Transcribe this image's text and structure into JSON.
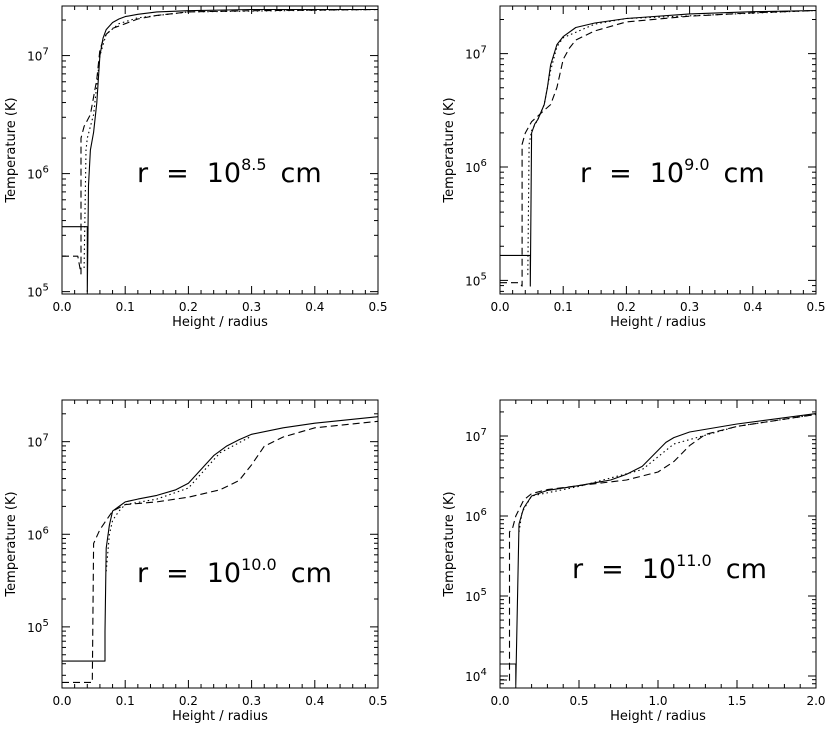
{
  "chart_data": [
    {
      "type": "line",
      "xlabel": "Height / radius",
      "ylabel": "Temperature (K)",
      "xlim": [
        0,
        0.5
      ],
      "ylim_log10": [
        4.98,
        7.42
      ],
      "x_ticks": [
        "0.0",
        "0.1",
        "0.2",
        "0.3",
        "0.4",
        "0.5"
      ],
      "x_tick_values": [
        0,
        0.1,
        0.2,
        0.3,
        0.4,
        0.5
      ],
      "y_ticks": [
        {
          "base": "10",
          "exp": "5",
          "log10": 5
        },
        {
          "base": "10",
          "exp": "6",
          "log10": 6
        },
        {
          "base": "10",
          "exp": "7",
          "log10": 7
        }
      ],
      "annotation": {
        "prefix": "r = 10",
        "exp": "8.5",
        "suffix": "cm"
      },
      "series": [
        {
          "name": "solid",
          "style": "solid",
          "x": [
            0,
            0.04,
            0.04,
            0.042,
            0.045,
            0.05,
            0.055,
            0.06,
            0.065,
            0.07,
            0.08,
            0.09,
            0.1,
            0.12,
            0.15,
            0.2,
            0.3,
            0.5
          ],
          "log10T": [
            5.55,
            5.55,
            5.0,
            5.9,
            6.2,
            6.35,
            6.6,
            7.0,
            7.15,
            7.22,
            7.28,
            7.31,
            7.33,
            7.35,
            7.37,
            7.38,
            7.39,
            7.39
          ]
        },
        {
          "name": "dashed",
          "style": "dashed",
          "x": [
            0,
            0.025,
            0.03,
            0.03,
            0.035,
            0.045,
            0.055,
            0.06,
            0.065,
            0.07,
            0.08,
            0.1,
            0.12,
            0.15,
            0.2,
            0.3,
            0.5
          ],
          "log10T": [
            5.3,
            5.3,
            5.15,
            6.3,
            6.4,
            6.5,
            6.8,
            7.05,
            7.13,
            7.18,
            7.23,
            7.27,
            7.31,
            7.34,
            7.37,
            7.38,
            7.39
          ]
        },
        {
          "name": "dotted",
          "style": "dotted",
          "x": [
            0.035,
            0.038,
            0.04,
            0.045,
            0.05,
            0.06,
            0.07,
            0.09,
            0.12,
            0.2,
            0.5
          ],
          "log10T": [
            5.2,
            6.2,
            6.3,
            6.4,
            6.5,
            7.0,
            7.18,
            7.27,
            7.32,
            7.37,
            7.39
          ]
        }
      ]
    },
    {
      "type": "line",
      "xlabel": "Height / radius",
      "ylabel": "Temperature (K)",
      "xlim": [
        0,
        0.5
      ],
      "ylim_log10": [
        4.88,
        7.42
      ],
      "x_ticks": [
        "0.0",
        "0.1",
        "0.2",
        "0.3",
        "0.4",
        "0.5"
      ],
      "x_tick_values": [
        0,
        0.1,
        0.2,
        0.3,
        0.4,
        0.5
      ],
      "y_ticks": [
        {
          "base": "10",
          "exp": "5",
          "log10": 5
        },
        {
          "base": "10",
          "exp": "6",
          "log10": 6
        },
        {
          "base": "10",
          "exp": "7",
          "log10": 7
        }
      ],
      "annotation": {
        "prefix": "r = 10",
        "exp": "9.0",
        "suffix": "cm"
      },
      "series": [
        {
          "name": "solid",
          "style": "solid",
          "x": [
            0,
            0.048,
            0.048,
            0.05,
            0.055,
            0.06,
            0.07,
            0.075,
            0.08,
            0.09,
            0.1,
            0.12,
            0.15,
            0.2,
            0.3,
            0.4,
            0.5
          ],
          "log10T": [
            5.22,
            5.22,
            4.95,
            6.3,
            6.38,
            6.42,
            6.55,
            6.7,
            6.9,
            7.08,
            7.15,
            7.23,
            7.27,
            7.31,
            7.35,
            7.37,
            7.38
          ]
        },
        {
          "name": "dashed",
          "style": "dashed",
          "x": [
            0,
            0.03,
            0.035,
            0.035,
            0.04,
            0.05,
            0.06,
            0.07,
            0.08,
            0.09,
            0.1,
            0.11,
            0.12,
            0.15,
            0.2,
            0.3,
            0.4,
            0.5
          ],
          "log10T": [
            4.98,
            4.98,
            4.95,
            6.2,
            6.3,
            6.4,
            6.45,
            6.5,
            6.55,
            6.7,
            6.95,
            7.05,
            7.12,
            7.2,
            7.28,
            7.33,
            7.36,
            7.38
          ]
        },
        {
          "name": "dotted",
          "style": "dotted",
          "x": [
            0.044,
            0.046,
            0.05,
            0.06,
            0.07,
            0.08,
            0.09,
            0.1,
            0.15,
            0.2,
            0.5
          ],
          "log10T": [
            5.05,
            6.2,
            6.32,
            6.42,
            6.55,
            6.85,
            7.06,
            7.14,
            7.26,
            7.31,
            7.38
          ]
        }
      ]
    },
    {
      "type": "line",
      "xlabel": "Height / radius",
      "ylabel": "Temperature (K)",
      "xlim": [
        0,
        0.5
      ],
      "ylim_log10": [
        4.34,
        7.45
      ],
      "x_ticks": [
        "0.0",
        "0.1",
        "0.2",
        "0.3",
        "0.4",
        "0.5"
      ],
      "x_tick_values": [
        0,
        0.1,
        0.2,
        0.3,
        0.4,
        0.5
      ],
      "y_ticks": [
        {
          "base": "10",
          "exp": "5",
          "log10": 5
        },
        {
          "base": "10",
          "exp": "6",
          "log10": 6
        },
        {
          "base": "10",
          "exp": "7",
          "log10": 7
        }
      ],
      "annotation": {
        "prefix": "r = 10",
        "exp": "10.0",
        "suffix": "cm"
      },
      "series": [
        {
          "name": "solid",
          "style": "solid",
          "x": [
            0,
            0.068,
            0.068,
            0.07,
            0.075,
            0.08,
            0.09,
            0.1,
            0.12,
            0.15,
            0.18,
            0.2,
            0.22,
            0.24,
            0.26,
            0.28,
            0.3,
            0.35,
            0.4,
            0.5
          ],
          "log10T": [
            4.63,
            4.63,
            4.95,
            5.85,
            6.1,
            6.25,
            6.3,
            6.35,
            6.38,
            6.42,
            6.48,
            6.55,
            6.7,
            6.85,
            6.95,
            7.02,
            7.08,
            7.15,
            7.2,
            7.27
          ]
        },
        {
          "name": "dashed",
          "style": "dashed",
          "x": [
            0,
            0.048,
            0.048,
            0.05,
            0.06,
            0.07,
            0.08,
            0.1,
            0.15,
            0.2,
            0.25,
            0.28,
            0.3,
            0.32,
            0.35,
            0.4,
            0.5
          ],
          "log10T": [
            4.4,
            4.4,
            4.4,
            5.9,
            6.05,
            6.15,
            6.25,
            6.32,
            6.35,
            6.4,
            6.48,
            6.58,
            6.75,
            6.95,
            7.05,
            7.15,
            7.22
          ]
        },
        {
          "name": "dotted",
          "style": "dotted",
          "x": [
            0.07,
            0.075,
            0.08,
            0.09,
            0.1,
            0.15,
            0.2,
            0.25,
            0.3
          ],
          "log10T": [
            5.6,
            6.0,
            6.15,
            6.25,
            6.32,
            6.38,
            6.5,
            6.88,
            7.06
          ]
        }
      ]
    },
    {
      "type": "line",
      "xlabel": "Height / radius",
      "ylabel": "Temperature (K)",
      "xlim": [
        0,
        2.0
      ],
      "ylim_log10": [
        3.85,
        7.45
      ],
      "x_ticks": [
        "0.0",
        "0.5",
        "1.0",
        "1.5",
        "2.0"
      ],
      "x_tick_values": [
        0,
        0.5,
        1.0,
        1.5,
        2.0
      ],
      "y_ticks": [
        {
          "base": "10",
          "exp": "4",
          "log10": 4
        },
        {
          "base": "10",
          "exp": "5",
          "log10": 5
        },
        {
          "base": "10",
          "exp": "6",
          "log10": 6
        },
        {
          "base": "10",
          "exp": "7",
          "log10": 7
        }
      ],
      "annotation": {
        "prefix": "r = 10",
        "exp": "11.0",
        "suffix": "cm"
      },
      "series": [
        {
          "name": "solid",
          "style": "solid",
          "x": [
            0,
            0.1,
            0.1,
            0.12,
            0.15,
            0.2,
            0.3,
            0.5,
            0.7,
            0.8,
            0.9,
            1.0,
            1.05,
            1.1,
            1.2,
            1.5,
            2.0
          ],
          "log10T": [
            4.15,
            4.15,
            3.9,
            5.9,
            6.1,
            6.25,
            6.32,
            6.38,
            6.45,
            6.52,
            6.62,
            6.82,
            6.92,
            6.98,
            7.05,
            7.15,
            7.28
          ]
        },
        {
          "name": "dashed",
          "style": "dashed",
          "x": [
            0,
            0.05,
            0.06,
            0.06,
            0.08,
            0.1,
            0.15,
            0.2,
            0.3,
            0.5,
            0.8,
            1.0,
            1.1,
            1.15,
            1.2,
            1.3,
            1.5,
            2.0
          ],
          "log10T": [
            3.95,
            3.95,
            3.93,
            5.8,
            5.85,
            6.0,
            6.2,
            6.28,
            6.33,
            6.38,
            6.45,
            6.55,
            6.68,
            6.78,
            6.88,
            7.02,
            7.12,
            7.27
          ]
        },
        {
          "name": "dotted",
          "style": "dotted",
          "x": [
            0.12,
            0.14,
            0.2,
            0.5,
            0.9,
            1.1,
            1.5,
            2.0
          ],
          "log10T": [
            5.8,
            6.05,
            6.25,
            6.37,
            6.58,
            6.9,
            7.12,
            7.27
          ]
        }
      ]
    }
  ]
}
